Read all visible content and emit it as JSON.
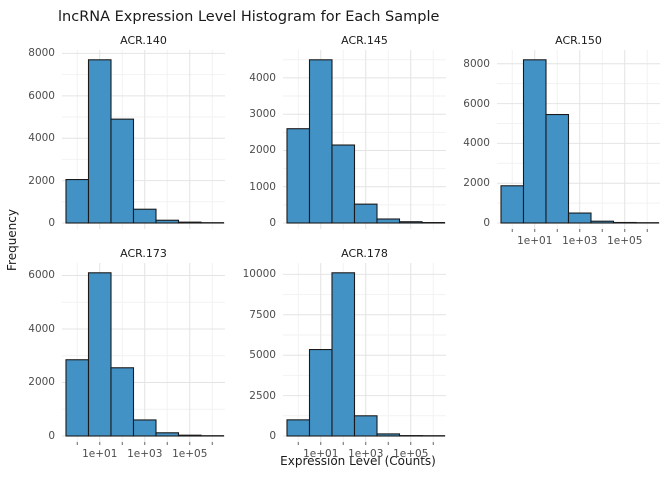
{
  "chart_data": {
    "type": "bar",
    "subtype": "faceted-histogram",
    "title": "lncRNA Expression Level Histogram for Each Sample",
    "xlabel": "Expression Level (Counts)",
    "ylabel": "Frequency",
    "x_scale": "log10",
    "x_tick_labels": [
      "1e+01",
      "1e+03",
      "1e+05"
    ],
    "labeled_bin_indices": [
      1,
      3,
      5
    ],
    "bin_centers_log10": [
      0,
      1,
      2,
      3,
      4,
      5,
      6
    ],
    "grid": "on",
    "legend_position": "none",
    "facets": [
      {
        "name": "ACR.140",
        "row": 1,
        "col": 1,
        "show_x_axis": false,
        "y_ticks": [
          0,
          2000,
          4000,
          6000,
          8000
        ],
        "values": [
          2050,
          7700,
          4900,
          650,
          130,
          40,
          15
        ]
      },
      {
        "name": "ACR.145",
        "row": 1,
        "col": 2,
        "show_x_axis": false,
        "y_ticks": [
          0,
          1000,
          2000,
          3000,
          4000
        ],
        "values": [
          2600,
          4500,
          2150,
          520,
          110,
          35,
          12
        ]
      },
      {
        "name": "ACR.150",
        "row": 1,
        "col": 3,
        "show_x_axis": true,
        "y_ticks": [
          0,
          2000,
          4000,
          6000,
          8000
        ],
        "values": [
          1870,
          8200,
          5450,
          500,
          90,
          25,
          10
        ]
      },
      {
        "name": "ACR.173",
        "row": 2,
        "col": 1,
        "show_x_axis": true,
        "y_ticks": [
          0,
          2000,
          4000,
          6000
        ],
        "values": [
          2850,
          6100,
          2550,
          600,
          120,
          30,
          10
        ]
      },
      {
        "name": "ACR.178",
        "row": 2,
        "col": 2,
        "show_x_axis": true,
        "y_ticks": [
          0,
          2500,
          5000,
          7500,
          10000
        ],
        "values": [
          1000,
          5350,
          10100,
          1250,
          130,
          25,
          8
        ]
      }
    ],
    "colors": {
      "bar_fill": "#4292C6",
      "bar_stroke": "#1A1A1A",
      "grid_major": "#E4E4E4",
      "grid_minor": "#F2F2F2",
      "axis_tick": "#666666",
      "tick_label": "#4D4D4D",
      "text": "#1A1A1A",
      "background": "#FFFFFF"
    }
  }
}
